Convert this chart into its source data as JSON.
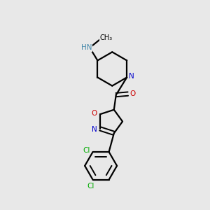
{
  "bg_color": "#e8e8e8",
  "atom_colors": {
    "C": "#000000",
    "N": "#0000cc",
    "NH": "#4488aa",
    "O": "#cc0000",
    "Cl": "#00aa00"
  }
}
